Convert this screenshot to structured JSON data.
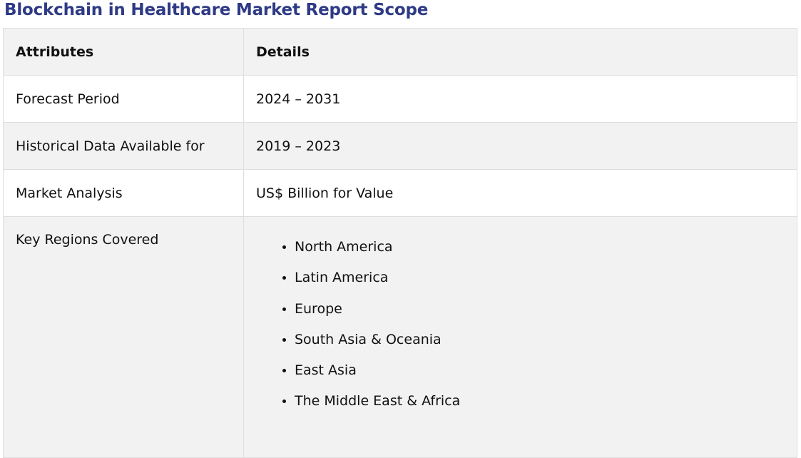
{
  "page": {
    "title": "Blockchain in Healthcare Market Report Scope"
  },
  "table": {
    "headers": {
      "attributes": "Attributes",
      "details": "Details"
    },
    "rows": [
      {
        "attribute": "Forecast Period",
        "detail": "2024 – 2031"
      },
      {
        "attribute": "Historical Data Available for",
        "detail": "2019 – 2023"
      },
      {
        "attribute": "Market Analysis",
        "detail": "US$ Billion for Value"
      }
    ],
    "regions": {
      "attribute": "Key Regions Covered",
      "items": [
        "North America",
        "Latin America",
        "Europe",
        "South Asia & Oceania",
        "East Asia",
        "The Middle East & Africa"
      ]
    }
  },
  "colors": {
    "title": "#2e3a85",
    "stripe": "#f2f2f2",
    "border": "#dedede"
  }
}
